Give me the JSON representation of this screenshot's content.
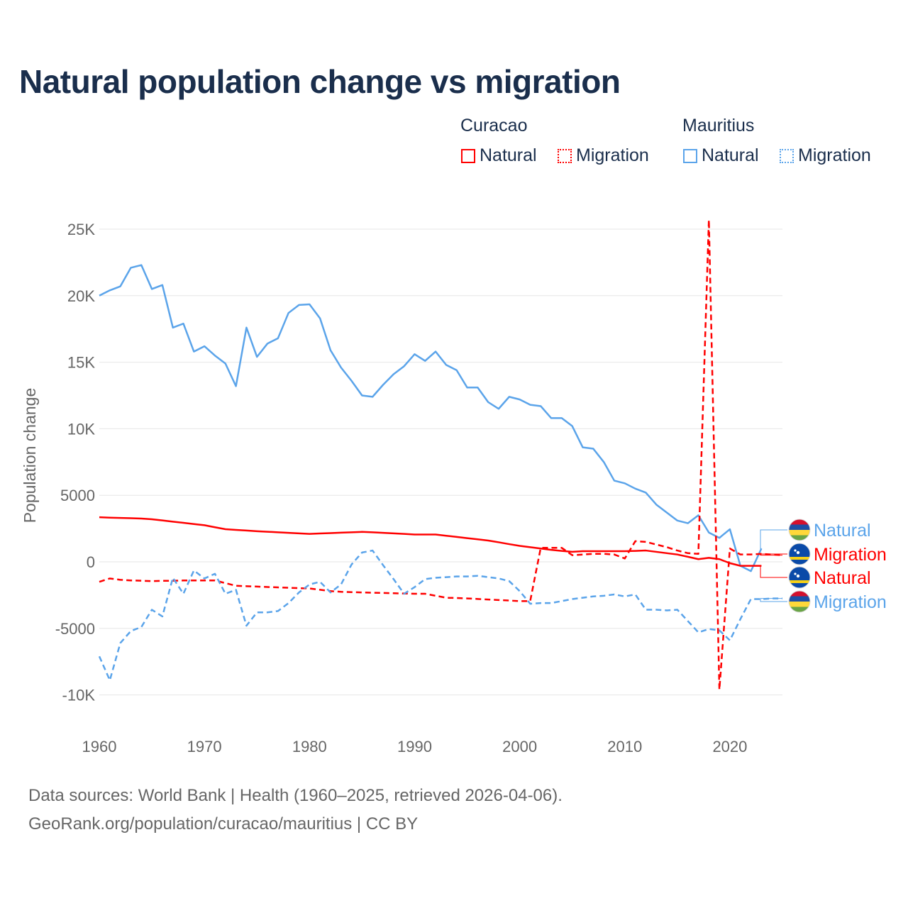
{
  "title": "Natural population change vs migration",
  "legend": {
    "groups": [
      {
        "name": "Curacao",
        "items": [
          {
            "label": "Natural",
            "style": "solid",
            "color": "#ff0000"
          },
          {
            "label": "Migration",
            "style": "dotted",
            "color": "#ff0000"
          }
        ]
      },
      {
        "name": "Mauritius",
        "items": [
          {
            "label": "Natural",
            "style": "solid",
            "color": "#5ba4ea"
          },
          {
            "label": "Migration",
            "style": "dotted",
            "color": "#5ba4ea"
          }
        ]
      }
    ]
  },
  "source_lines": [
    "Data sources: World Bank | Health (1960–2025, retrieved 2026-04-06).",
    "GeoRank.org/population/curacao/mauritius | CC BY"
  ],
  "chart_data": {
    "type": "line",
    "ylabel": "Population change",
    "xlabel": "",
    "xlim": [
      1960,
      2025
    ],
    "ylim": [
      -11000,
      26000
    ],
    "xticks": [
      1960,
      1970,
      1980,
      1990,
      2000,
      2010,
      2020
    ],
    "yticks": [
      {
        "v": 25000,
        "label": "25K"
      },
      {
        "v": 20000,
        "label": "20K"
      },
      {
        "v": 15000,
        "label": "15K"
      },
      {
        "v": 10000,
        "label": "10K"
      },
      {
        "v": 5000,
        "label": "5000"
      },
      {
        "v": 0,
        "label": "0"
      },
      {
        "v": -5000,
        "label": "-5000"
      },
      {
        "v": -10000,
        "label": "-10K"
      }
    ],
    "grid": true,
    "series": [
      {
        "name": "Mauritius Natural",
        "label": "Natural",
        "country": "Mauritius",
        "color": "#5ba4ea",
        "dash": false,
        "start": 1960,
        "values": [
          20000,
          20400,
          20700,
          22100,
          22300,
          20500,
          20800,
          17600,
          17900,
          15800,
          16200,
          15500,
          14900,
          13200,
          17600,
          15400,
          16400,
          16800,
          18700,
          19300,
          19350,
          18300,
          15900,
          14600,
          13600,
          12500,
          12400,
          13300,
          14100,
          14700,
          15600,
          15100,
          15800,
          14800,
          14400,
          13100,
          13100,
          12000,
          11500,
          12400,
          12200,
          11800,
          11700,
          10800,
          10800,
          10200,
          8600,
          8500,
          7500,
          6100,
          5900,
          5500,
          5200,
          4300,
          3700,
          3100,
          2900,
          3500,
          2200,
          1800,
          2450,
          -300,
          -700,
          1000
        ]
      },
      {
        "name": "Curacao Migration",
        "label": "Migration",
        "country": "Curacao",
        "color": "#ff0000",
        "dash": true,
        "start": 1960,
        "values": [
          -1500,
          -1250,
          -1350,
          -1400,
          -1420,
          -1450,
          -1430,
          -1420,
          -1400,
          -1400,
          -1400,
          -1400,
          -1600,
          -1800,
          -1830,
          -1860,
          -1890,
          -1920,
          -1950,
          -1980,
          -2000,
          -2100,
          -2200,
          -2250,
          -2280,
          -2300,
          -2320,
          -2340,
          -2360,
          -2380,
          -2400,
          -2400,
          -2550,
          -2700,
          -2720,
          -2750,
          -2790,
          -2830,
          -2870,
          -2910,
          -2950,
          -2950,
          1050,
          1050,
          1050,
          500,
          550,
          600,
          600,
          550,
          250,
          1550,
          1500,
          1300,
          1100,
          850,
          650,
          600,
          25700,
          -9600,
          1000,
          550,
          550,
          600,
          550,
          500
        ]
      },
      {
        "name": "Curacao Natural",
        "label": "Natural",
        "country": "Curacao",
        "color": "#ff0000",
        "dash": false,
        "start": 1960,
        "values": [
          3350,
          3320,
          3300,
          3280,
          3250,
          3200,
          3110,
          3020,
          2930,
          2840,
          2750,
          2600,
          2450,
          2400,
          2350,
          2300,
          2260,
          2220,
          2180,
          2140,
          2100,
          2130,
          2160,
          2190,
          2220,
          2250,
          2220,
          2180,
          2140,
          2100,
          2050,
          2050,
          2050,
          1960,
          1870,
          1780,
          1690,
          1600,
          1470,
          1330,
          1200,
          1100,
          1000,
          900,
          820,
          750,
          800,
          800,
          800,
          800,
          800,
          820,
          850,
          750,
          650,
          550,
          380,
          200,
          300,
          200,
          -100,
          -300,
          -300,
          -300
        ]
      },
      {
        "name": "Mauritius Migration",
        "label": "Migration",
        "country": "Mauritius",
        "color": "#5ba4ea",
        "dash": true,
        "start": 1960,
        "values": [
          -7100,
          -8900,
          -6100,
          -5200,
          -4900,
          -3600,
          -4100,
          -1200,
          -2400,
          -650,
          -1250,
          -900,
          -2400,
          -2100,
          -4800,
          -3800,
          -3800,
          -3700,
          -3100,
          -2300,
          -1700,
          -1500,
          -2300,
          -1700,
          -200,
          700,
          850,
          -250,
          -1300,
          -2400,
          -1900,
          -1300,
          -1200,
          -1150,
          -1100,
          -1100,
          -1050,
          -1150,
          -1250,
          -1450,
          -2200,
          -3150,
          -3100,
          -3100,
          -2950,
          -2800,
          -2700,
          -2600,
          -2550,
          -2450,
          -2600,
          -2450,
          -3600,
          -3600,
          -3650,
          -3600,
          -4450,
          -5300,
          -5050,
          -5150,
          -5900,
          -4300,
          -2800,
          -2800,
          -2750,
          -2750
        ]
      }
    ],
    "end_labels": [
      {
        "label": "Natural",
        "country": "Mauritius",
        "color": "#5ba4ea"
      },
      {
        "label": "Migration",
        "country": "Curacao",
        "color": "#ff0000"
      },
      {
        "label": "Natural",
        "country": "Curacao",
        "color": "#ff0000"
      },
      {
        "label": "Migration",
        "country": "Mauritius",
        "color": "#5ba4ea"
      }
    ]
  }
}
